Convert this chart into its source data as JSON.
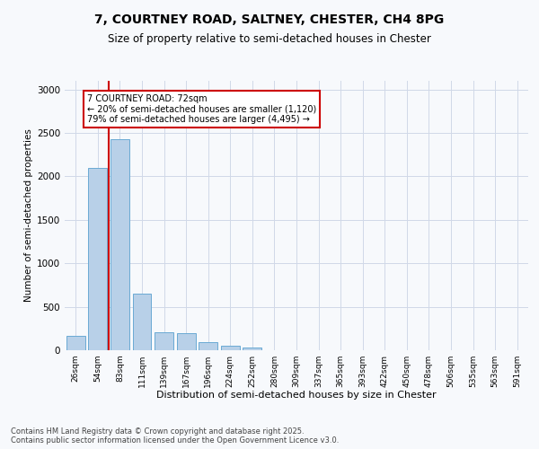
{
  "title_line1": "7, COURTNEY ROAD, SALTNEY, CHESTER, CH4 8PG",
  "title_line2": "Size of property relative to semi-detached houses in Chester",
  "xlabel": "Distribution of semi-detached houses by size in Chester",
  "ylabel": "Number of semi-detached properties",
  "categories": [
    "26sqm",
    "54sqm",
    "83sqm",
    "111sqm",
    "139sqm",
    "167sqm",
    "196sqm",
    "224sqm",
    "252sqm",
    "280sqm",
    "309sqm",
    "337sqm",
    "365sqm",
    "393sqm",
    "422sqm",
    "450sqm",
    "478sqm",
    "506sqm",
    "535sqm",
    "563sqm",
    "591sqm"
  ],
  "bar_values": [
    170,
    2100,
    2430,
    650,
    210,
    200,
    90,
    55,
    35,
    5,
    0,
    0,
    0,
    0,
    0,
    0,
    0,
    0,
    0,
    0,
    0
  ],
  "bar_color": "#b8d0e8",
  "bar_edge_color": "#6aaad4",
  "marker_color": "#cc0000",
  "annotation_title": "7 COURTNEY ROAD: 72sqm",
  "annotation_line1": "← 20% of semi-detached houses are smaller (1,120)",
  "annotation_line2": "79% of semi-detached houses are larger (4,495) →",
  "annotation_box_color": "#cc0000",
  "ylim": [
    0,
    3100
  ],
  "yticks": [
    0,
    500,
    1000,
    1500,
    2000,
    2500,
    3000
  ],
  "grid_color": "#d0d8e8",
  "background_color": "#f7f9fc",
  "footer_line1": "Contains HM Land Registry data © Crown copyright and database right 2025.",
  "footer_line2": "Contains public sector information licensed under the Open Government Licence v3.0."
}
